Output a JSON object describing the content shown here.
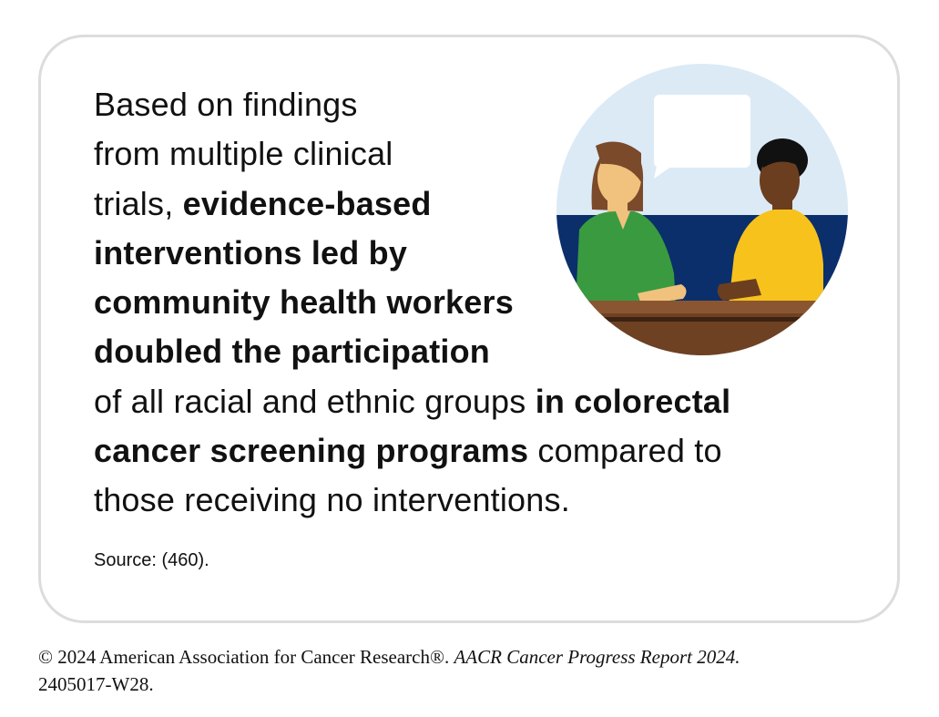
{
  "card": {
    "lines": [
      [
        {
          "text": "Based on findings"
        }
      ],
      [
        {
          "text": "from multiple clinical"
        }
      ],
      [
        {
          "text": "trials, "
        },
        {
          "text": "evidence-based",
          "bold": true
        }
      ],
      [
        {
          "text": "interventions led by",
          "bold": true
        }
      ],
      [
        {
          "text": "community health workers",
          "bold": true
        }
      ],
      [
        {
          "text": "doubled the participation",
          "bold": true
        }
      ],
      [
        {
          "text": "of all racial and ethnic groups "
        },
        {
          "text": "in colorectal",
          "bold": true
        }
      ],
      [
        {
          "text": "cancer screening programs",
          "bold": true
        },
        {
          "text": " compared to"
        }
      ],
      [
        {
          "text": "those receiving no interventions."
        }
      ]
    ],
    "source": "Source: (460)."
  },
  "footer": {
    "lines": [
      [
        {
          "text": "© 2024 American Association for Cancer Research®. "
        },
        {
          "text": "AACR Cancer Progress Report 2024.",
          "italic": true
        }
      ],
      [
        {
          "text": "2405017-W28."
        }
      ]
    ]
  }
}
